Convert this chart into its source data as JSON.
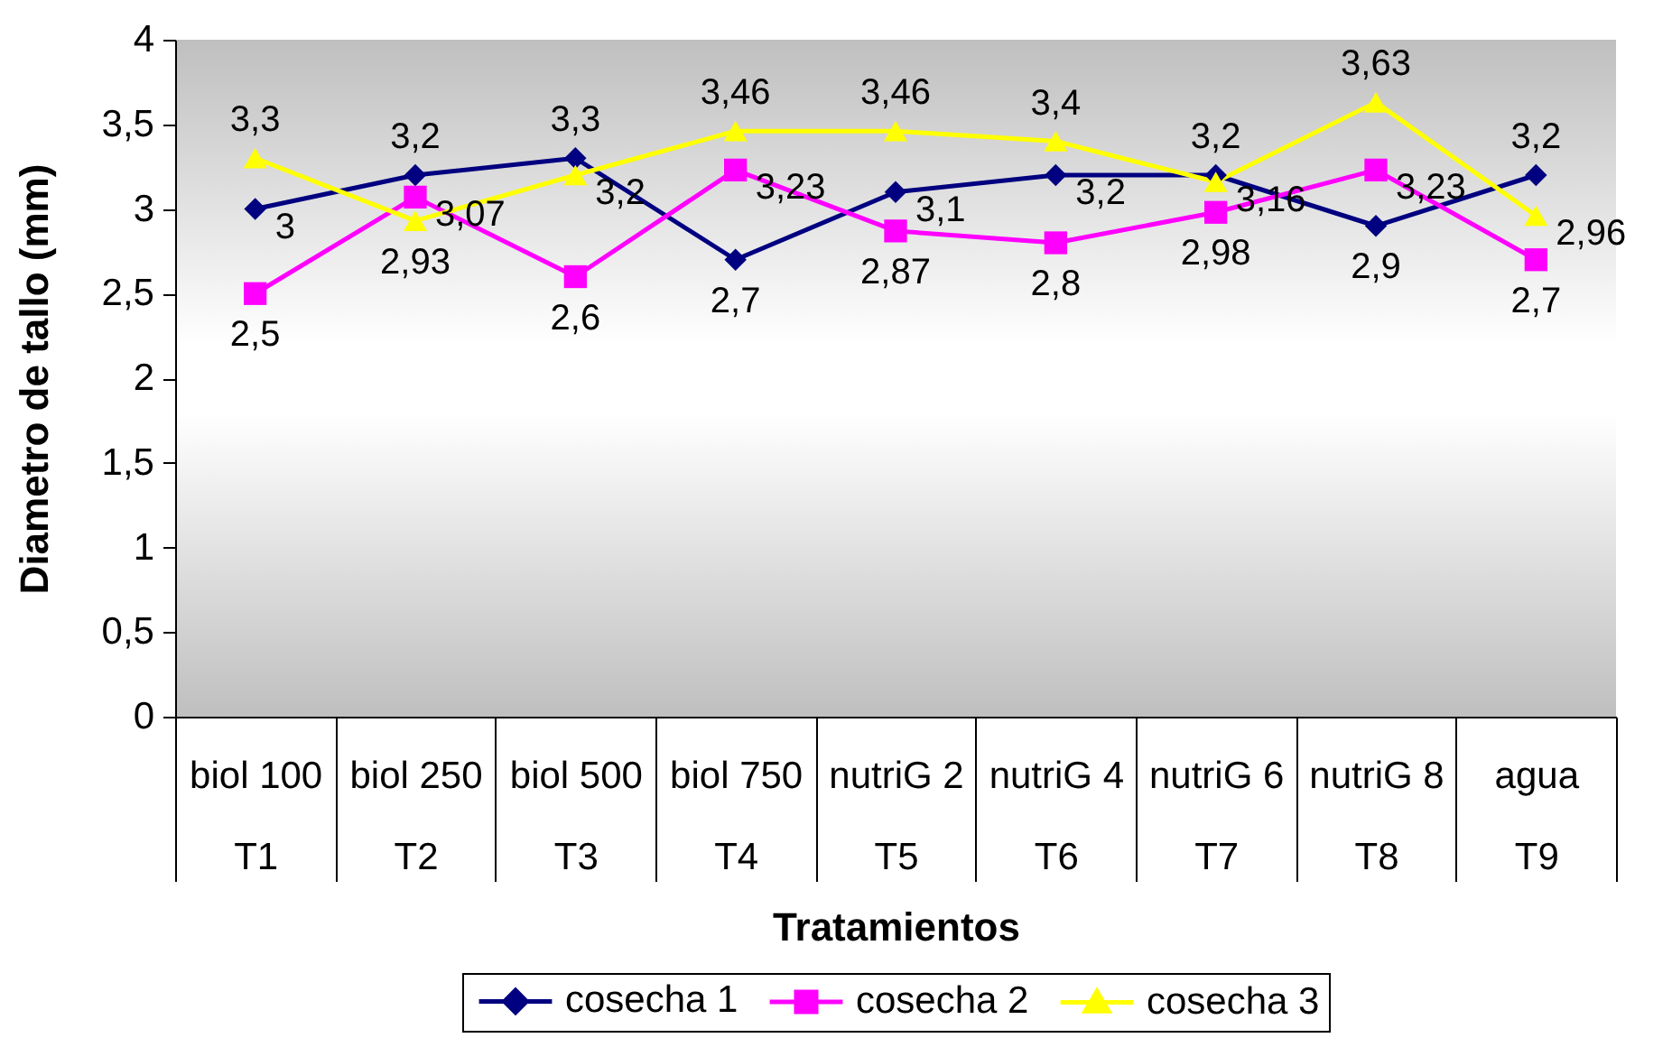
{
  "chart_data": {
    "type": "line",
    "xlabel": "Tratamientos",
    "ylabel": "Diametro de tallo (mm)",
    "categories": [
      "biol 100\nT1",
      "biol 250\nT2",
      "biol 500\nT3",
      "biol 750\nT4",
      "nutriG 2\nT5",
      "nutriG 4\nT6",
      "nutriG 6\nT7",
      "nutriG 8\nT8",
      "agua\nT9"
    ],
    "ylim": [
      0,
      4
    ],
    "yticks": [
      0,
      {
        "value": 0.5,
        "label": "0,5"
      },
      1,
      {
        "value": 1.5,
        "label": "1,5"
      },
      2,
      {
        "value": 2.5,
        "label": "2,5"
      },
      3,
      {
        "value": 3.5,
        "label": "3,5"
      },
      4
    ],
    "legend": "bottom",
    "series": [
      {
        "name": "cosecha 1",
        "color": "#000080",
        "marker": "diamond",
        "values": [
          3,
          3.2,
          3.3,
          2.7,
          3.1,
          3.2,
          3.2,
          2.9,
          3.2
        ],
        "value_labels": [
          "3",
          "3,2",
          "3,3",
          "2,7",
          "3,1",
          "3,2",
          "3,2",
          "2,9",
          "3,2"
        ]
      },
      {
        "name": "cosecha 2",
        "color": "#ff00ff",
        "marker": "square",
        "values": [
          2.5,
          3.07,
          2.6,
          3.23,
          2.87,
          2.8,
          2.98,
          3.23,
          2.7
        ],
        "value_labels": [
          "2,5",
          "3,07",
          "2,6",
          "3,23",
          "2,87",
          "2,8",
          "2,98",
          "3,23",
          "2,7"
        ]
      },
      {
        "name": "cosecha 3",
        "color": "#ffff00",
        "marker": "triangle",
        "values": [
          3.3,
          2.93,
          3.2,
          3.46,
          3.46,
          3.4,
          3.16,
          3.63,
          2.96
        ],
        "value_labels": [
          "3,3",
          "2,93",
          "3,2",
          "3,46",
          "3,46",
          "3,4",
          "3,16",
          "3,63",
          "2,96"
        ]
      }
    ]
  }
}
